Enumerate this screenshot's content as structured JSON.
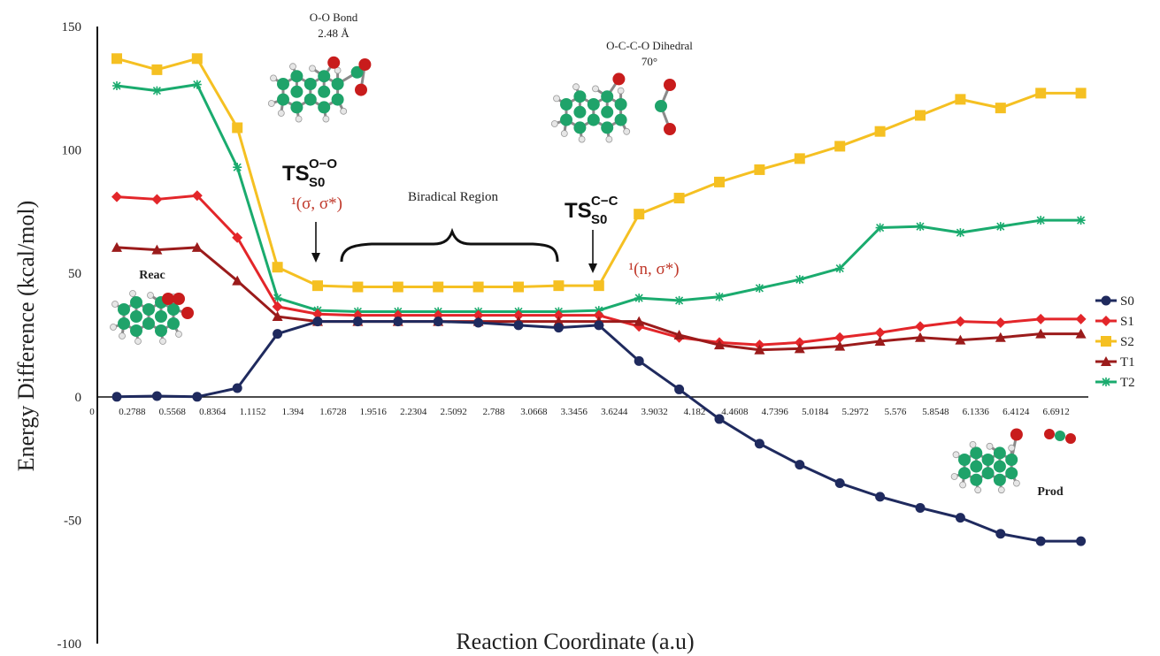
{
  "chart_data": {
    "type": "line",
    "xlabel": "Reaction Coordinate (a.u)",
    "ylabel": "Energy Difference (kcal/mol)",
    "ylim": [
      -100,
      150
    ],
    "yticks": [
      150,
      100,
      50,
      0,
      -50,
      -100
    ],
    "categories": [
      "0",
      "0.2788",
      "0.5568",
      "0.8364",
      "1.1152",
      "1.394",
      "1.6728",
      "1.9516",
      "2.2304",
      "2.5092",
      "2.788",
      "3.0668",
      "3.3456",
      "3.6244",
      "3.9032",
      "4.182",
      "4.4608",
      "4.7396",
      "5.0184",
      "5.2972",
      "5.576",
      "5.8548",
      "6.1336",
      "6.4124",
      "6.6912"
    ],
    "legend_position": "right",
    "series": [
      {
        "name": "S0",
        "color": "#1f2a5e",
        "marker": "circle",
        "values": [
          0,
          0.3,
          0,
          3.5,
          25.5,
          30.5,
          30.5,
          30.5,
          30.5,
          30,
          29,
          28,
          29,
          14.5,
          3,
          -9,
          -19,
          -27.5,
          -35,
          -40.5,
          -45,
          -49,
          -55.5,
          -58.5,
          -58.5
        ]
      },
      {
        "name": "S1",
        "color": "#e3262a",
        "marker": "diamond",
        "values": [
          81,
          80,
          81.5,
          64.5,
          36.5,
          33.5,
          33,
          33,
          33,
          33,
          33,
          33,
          33,
          28.5,
          24,
          22,
          21,
          22,
          24,
          26,
          28.5,
          30.5,
          30,
          31.5,
          31.5
        ]
      },
      {
        "name": "S2",
        "color": "#f5c022",
        "marker": "square",
        "values": [
          137,
          132.5,
          137,
          109,
          52.5,
          45,
          44.5,
          44.5,
          44.5,
          44.5,
          44.5,
          45,
          45,
          74,
          80.5,
          87,
          92,
          96.5,
          101.5,
          107.5,
          114,
          120.5,
          117,
          123,
          123
        ]
      },
      {
        "name": "T1",
        "color": "#9b1b1b",
        "marker": "triangle",
        "values": [
          60.5,
          59.5,
          60.5,
          47,
          32.5,
          30.5,
          30.5,
          30.5,
          30.5,
          30.5,
          30.5,
          30.5,
          30.5,
          30.5,
          25,
          21,
          19,
          19.5,
          20.5,
          22.5,
          24,
          23,
          24,
          25.5,
          25.5
        ]
      },
      {
        "name": "T2",
        "color": "#1aab6e",
        "marker": "star",
        "values": [
          126,
          124,
          126.5,
          93,
          40,
          35,
          34.5,
          34.5,
          34.5,
          34.5,
          34.5,
          34.5,
          35,
          40,
          39,
          40.5,
          44,
          47.5,
          52,
          68.5,
          69,
          66.5,
          69,
          71.5,
          71.5
        ]
      }
    ],
    "annotations": {
      "oo_bond": "O-O Bond",
      "oo_length": "2.48 Å",
      "dihedral": "O-C-C-O Dihedral",
      "dihedral_angle": "70°",
      "ts1_main": "TS",
      "ts1_sup": "O−O",
      "ts1_sub": "S0",
      "ts1_state": "¹(σ, σ*)",
      "ts2_main": "TS",
      "ts2_sup": "C−C",
      "ts2_sub": "S0",
      "ts2_state": "¹(n, σ*)",
      "region": "Biradical Region",
      "reac": "Reac",
      "prod": "Prod"
    }
  }
}
